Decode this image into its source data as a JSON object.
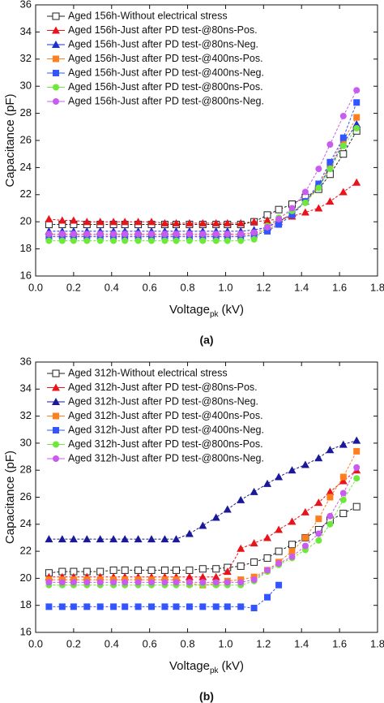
{
  "chart_data": [
    {
      "type": "line",
      "panel": "(a)",
      "ylabel": "Capacitance (pF)",
      "xlabel": {
        "main": "Voltage",
        "sub": "pk",
        "rest": "(kV)"
      },
      "xlim": [
        0,
        1.8
      ],
      "ylim": [
        16,
        36
      ],
      "xticks": [
        {
          "value": 0,
          "label": "0.0"
        },
        0.2,
        0.4,
        0.6,
        0.8,
        {
          "value": 1,
          "label": "1.0"
        },
        1.2,
        1.4,
        1.6,
        1.8
      ],
      "yticks": [
        16,
        18,
        20,
        22,
        24,
        26,
        28,
        30,
        32,
        34,
        36
      ],
      "legend": "upper left",
      "x": [
        0.07,
        0.14,
        0.2,
        0.27,
        0.34,
        0.41,
        0.47,
        0.54,
        0.61,
        0.68,
        0.74,
        0.81,
        0.88,
        0.95,
        1.01,
        1.08,
        1.15,
        1.22,
        1.28,
        1.35,
        1.42,
        1.49,
        1.55,
        1.62,
        1.69
      ],
      "series": [
        {
          "name": "Aged 156h-Without electrical stress",
          "color": "#222222",
          "marker": "square-open",
          "values": [
            19.8,
            19.8,
            19.8,
            19.8,
            19.8,
            19.8,
            19.8,
            19.8,
            19.8,
            19.8,
            19.8,
            19.8,
            19.8,
            19.8,
            19.8,
            19.8,
            20.0,
            20.5,
            20.9,
            21.3,
            21.8,
            22.4,
            23.5,
            25.0,
            26.7
          ]
        },
        {
          "name": "Aged 156h-Just after PD test-@80ns-Pos.",
          "color": "#e8141c",
          "marker": "triangle",
          "values": [
            20.2,
            20.1,
            20.1,
            20.0,
            20.0,
            20.0,
            20.0,
            20.0,
            20.0,
            19.9,
            19.9,
            19.9,
            19.9,
            19.9,
            19.9,
            19.9,
            20.0,
            20.1,
            20.2,
            20.4,
            20.7,
            21.0,
            21.5,
            22.2,
            22.9
          ]
        },
        {
          "name": "Aged 156h-Just after PD test-@80ns-Neg.",
          "color": "#1f2fd6",
          "marker": "triangle",
          "values": [
            19.3,
            19.3,
            19.3,
            19.3,
            19.3,
            19.3,
            19.3,
            19.3,
            19.3,
            19.3,
            19.3,
            19.3,
            19.3,
            19.3,
            19.3,
            19.3,
            19.4,
            19.6,
            20.0,
            20.6,
            21.5,
            22.6,
            24.0,
            25.8,
            27.2
          ]
        },
        {
          "name": "Aged 156h-Just after PD test-@400ns-Pos.",
          "color": "#ff7f1e",
          "marker": "square",
          "values": [
            19.0,
            19.0,
            19.0,
            19.0,
            19.0,
            19.0,
            19.0,
            19.0,
            19.0,
            19.0,
            19.0,
            19.0,
            19.0,
            19.0,
            19.0,
            19.0,
            19.1,
            19.4,
            19.9,
            20.6,
            21.5,
            22.6,
            24.2,
            26.0,
            27.7
          ]
        },
        {
          "name": "Aged 156h-Just after PD test-@400ns-Neg.",
          "color": "#3355ff",
          "marker": "square",
          "values": [
            18.9,
            18.9,
            18.9,
            18.9,
            18.9,
            18.9,
            18.9,
            18.9,
            18.9,
            18.9,
            18.9,
            18.9,
            18.9,
            18.9,
            18.9,
            18.9,
            19.0,
            19.3,
            19.8,
            20.5,
            21.5,
            22.8,
            24.4,
            26.2,
            28.8
          ]
        },
        {
          "name": "Aged 156h-Just after PD test-@800ns-Pos.",
          "color": "#6ee83a",
          "marker": "circle",
          "values": [
            18.6,
            18.6,
            18.6,
            18.6,
            18.6,
            18.6,
            18.6,
            18.6,
            18.6,
            18.6,
            18.6,
            18.6,
            18.6,
            18.6,
            18.6,
            18.6,
            18.7,
            19.7,
            20.3,
            20.8,
            21.4,
            22.5,
            23.9,
            25.6,
            26.9
          ]
        },
        {
          "name": "Aged 156h-Just after PD test-@800ns-Neg.",
          "color": "#c95cf0",
          "marker": "circle",
          "values": [
            19.1,
            19.1,
            19.1,
            19.1,
            19.1,
            19.1,
            19.1,
            19.1,
            19.1,
            19.1,
            19.1,
            19.1,
            19.1,
            19.1,
            19.1,
            19.1,
            19.2,
            19.6,
            20.2,
            21.0,
            22.2,
            23.9,
            25.7,
            27.8,
            29.7
          ]
        }
      ]
    },
    {
      "type": "line",
      "panel": "(b)",
      "ylabel": "Capacitance (pF)",
      "xlabel": {
        "main": "Voltage",
        "sub": "pk",
        "rest": "(kV)"
      },
      "xlim": [
        0,
        1.8
      ],
      "ylim": [
        16,
        36
      ],
      "xticks": [
        {
          "value": 0,
          "label": "0.0"
        },
        0.2,
        0.4,
        0.6,
        0.8,
        {
          "value": 1,
          "label": "1.0"
        },
        1.2,
        1.4,
        1.6,
        1.8
      ],
      "yticks": [
        16,
        18,
        20,
        22,
        24,
        26,
        28,
        30,
        32,
        34,
        36
      ],
      "legend": "upper left",
      "x": [
        0.07,
        0.14,
        0.2,
        0.27,
        0.34,
        0.41,
        0.47,
        0.54,
        0.61,
        0.68,
        0.74,
        0.81,
        0.88,
        0.95,
        1.01,
        1.08,
        1.15,
        1.22,
        1.28,
        1.35,
        1.42,
        1.49,
        1.55,
        1.62,
        1.69
      ],
      "series": [
        {
          "name": "Aged 312h-Without electrical stress",
          "color": "#222222",
          "marker": "square-open",
          "values": [
            20.4,
            20.5,
            20.5,
            20.5,
            20.5,
            20.6,
            20.6,
            20.6,
            20.6,
            20.6,
            20.6,
            20.6,
            20.7,
            20.7,
            20.8,
            20.9,
            21.2,
            21.5,
            22.0,
            22.5,
            23.0,
            23.6,
            24.3,
            24.8,
            25.3
          ]
        },
        {
          "name": "Aged 312h-Just after PD test-@80ns-Pos.",
          "color": "#e8141c",
          "marker": "triangle",
          "values": [
            20.1,
            20.1,
            20.1,
            20.1,
            20.1,
            20.1,
            20.1,
            20.1,
            20.1,
            20.1,
            20.1,
            20.1,
            20.1,
            20.1,
            20.5,
            22.2,
            22.6,
            23.0,
            23.6,
            24.2,
            24.9,
            25.6,
            26.4,
            27.2,
            28.0
          ]
        },
        {
          "name": "Aged 312h-Just after PD test-@80ns-Neg.",
          "color": "#1a1a99",
          "marker": "triangle",
          "values": [
            22.9,
            22.9,
            22.9,
            22.9,
            22.9,
            22.9,
            22.9,
            22.9,
            22.9,
            22.9,
            22.9,
            23.3,
            23.9,
            24.5,
            25.1,
            25.8,
            26.4,
            27.0,
            27.5,
            28.0,
            28.4,
            28.9,
            29.5,
            29.9,
            30.2
          ]
        },
        {
          "name": "Aged 312h-Just after PD test-@400ns-Pos.",
          "color": "#ff7f1e",
          "marker": "square",
          "values": [
            19.9,
            19.9,
            19.9,
            19.9,
            19.9,
            19.9,
            19.9,
            19.9,
            19.9,
            19.9,
            19.9,
            19.6,
            19.5,
            19.6,
            19.8,
            19.9,
            20.1,
            20.6,
            21.2,
            22.0,
            23.0,
            24.4,
            26.0,
            27.5,
            29.4
          ]
        },
        {
          "name": "Aged 312h-Just after PD test-@400ns-Neg.",
          "color": "#3355ff",
          "marker": "square",
          "values": [
            17.9,
            17.9,
            17.9,
            17.9,
            17.9,
            17.9,
            17.9,
            17.9,
            17.9,
            17.9,
            17.9,
            17.9,
            17.9,
            17.9,
            17.9,
            17.9,
            17.8,
            18.6,
            19.5,
            null,
            null,
            null,
            null,
            null,
            null
          ]
        },
        {
          "name": "Aged 312h-Just after PD test-@800ns-Pos.",
          "color": "#6ee83a",
          "marker": "circle",
          "values": [
            19.5,
            19.5,
            19.5,
            19.5,
            19.5,
            19.5,
            19.5,
            19.5,
            19.5,
            19.5,
            19.5,
            19.5,
            19.5,
            19.5,
            19.5,
            19.5,
            19.8,
            20.5,
            21.0,
            21.5,
            22.1,
            22.8,
            24.0,
            25.8,
            27.4
          ]
        },
        {
          "name": "Aged 312h-Just after PD test-@800ns-Neg.",
          "color": "#c95cf0",
          "marker": "circle",
          "values": [
            19.7,
            19.7,
            19.7,
            19.7,
            19.7,
            19.7,
            19.7,
            19.7,
            19.7,
            19.7,
            19.7,
            19.7,
            19.7,
            19.7,
            19.7,
            19.7,
            19.9,
            20.6,
            21.1,
            21.6,
            22.4,
            23.3,
            24.6,
            26.3,
            28.2
          ]
        }
      ]
    }
  ]
}
